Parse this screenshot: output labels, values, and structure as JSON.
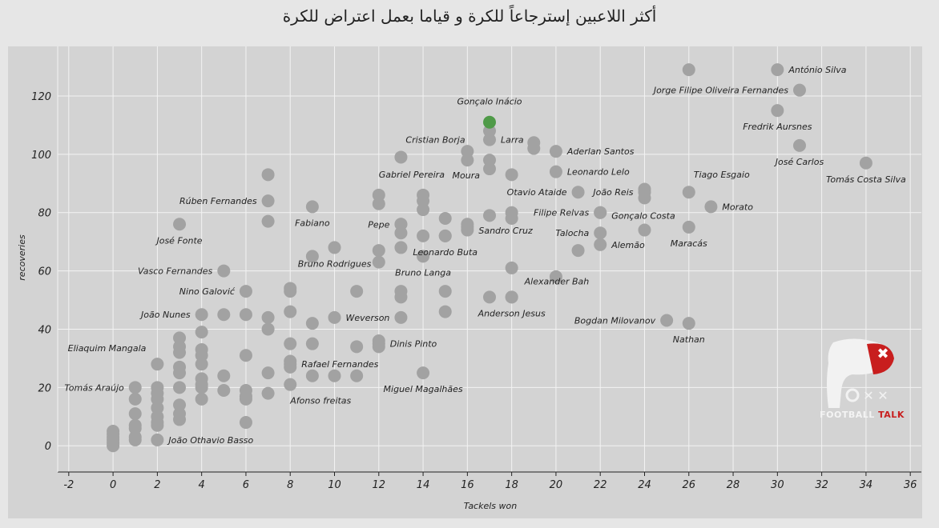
{
  "chart_data": {
    "type": "scatter",
    "title": "أكثر اللاعبين إسترجاعاً للكرة و قياما بعمل اعتراض للكرة",
    "xlabel": "Tackels won",
    "ylabel": "recoveries",
    "xlim": [
      -2.5,
      36.5
    ],
    "ylim": [
      -9,
      137
    ],
    "xticks": [
      -2,
      0,
      2,
      4,
      6,
      8,
      10,
      12,
      14,
      16,
      18,
      20,
      22,
      24,
      26,
      28,
      30,
      32,
      34,
      36
    ],
    "yticks": [
      0,
      20,
      40,
      60,
      80,
      100,
      120
    ],
    "grid": true,
    "marker_color": "#a2a2a2",
    "highlight_color": "#4f9a48",
    "labeled_points": [
      {
        "name": "Gonçalo Inácio",
        "x": 17,
        "y": 111,
        "highlight": true,
        "anchor": "middle",
        "side": "above"
      },
      {
        "name": "António Silva",
        "x": 30,
        "y": 129,
        "anchor": "start",
        "side": "right"
      },
      {
        "name": "Jorge Filipe Oliveira Fernandes",
        "x": 31,
        "y": 122,
        "anchor": "end",
        "side": "left"
      },
      {
        "name": "Fredrik Aursnes",
        "x": 30,
        "y": 115,
        "anchor": "middle",
        "side": "below"
      },
      {
        "name": "José Carlos",
        "x": 31,
        "y": 103,
        "anchor": "middle",
        "side": "below"
      },
      {
        "name": "Tomás Costa Silva",
        "x": 34,
        "y": 97,
        "anchor": "middle",
        "side": "below"
      },
      {
        "name": "Cristian Borja",
        "x": 13,
        "y": 99,
        "anchor": "start",
        "side": "above-right"
      },
      {
        "name": "Larra",
        "x": 17,
        "y": 105,
        "anchor": "start",
        "side": "right"
      },
      {
        "name": "Aderlan Santos",
        "x": 20,
        "y": 101,
        "anchor": "start",
        "side": "right"
      },
      {
        "name": "Leonardo Lelo",
        "x": 20,
        "y": 94,
        "anchor": "start",
        "side": "right"
      },
      {
        "name": "Moura",
        "x": 17,
        "y": 95,
        "anchor": "end",
        "side": "left-below"
      },
      {
        "name": "Tiago Esgaio",
        "x": 26,
        "y": 87,
        "anchor": "start",
        "side": "above-right"
      },
      {
        "name": "Gabriel Pereira",
        "x": 12,
        "y": 86,
        "anchor": "start",
        "side": "above"
      },
      {
        "name": "Otavio Ataide",
        "x": 21,
        "y": 87,
        "anchor": "end",
        "side": "left"
      },
      {
        "name": "João Reis",
        "x": 24,
        "y": 87,
        "anchor": "end",
        "side": "left"
      },
      {
        "name": "Rúben Fernandes",
        "x": 7,
        "y": 84,
        "anchor": "end",
        "side": "left"
      },
      {
        "name": "Morato",
        "x": 27,
        "y": 82,
        "anchor": "start",
        "side": "right"
      },
      {
        "name": "Fabiano",
        "x": 9,
        "y": 82,
        "anchor": "middle",
        "side": "below"
      },
      {
        "name": "Filipe Relvas",
        "x": 22,
        "y": 80,
        "anchor": "end",
        "side": "left"
      },
      {
        "name": "Gonçalo Costa",
        "x": 22,
        "y": 80,
        "anchor": "start",
        "side": "right-below"
      },
      {
        "name": "Pepe",
        "x": 13,
        "y": 76,
        "anchor": "end",
        "side": "left"
      },
      {
        "name": "José Fonte",
        "x": 3,
        "y": 76,
        "anchor": "middle",
        "side": "below"
      },
      {
        "name": "Maracás",
        "x": 26,
        "y": 75,
        "anchor": "middle",
        "side": "below"
      },
      {
        "name": "Sandro Cruz",
        "x": 16,
        "y": 75,
        "anchor": "start",
        "side": "right-below"
      },
      {
        "name": "Talocha",
        "x": 22,
        "y": 73,
        "anchor": "end",
        "side": "left"
      },
      {
        "name": "Alemão",
        "x": 22,
        "y": 69,
        "anchor": "start",
        "side": "right"
      },
      {
        "name": "Leonardo Buta",
        "x": 15,
        "y": 72,
        "anchor": "middle",
        "side": "below"
      },
      {
        "name": "Vasco Fernandes",
        "x": 5,
        "y": 60,
        "anchor": "end",
        "side": "left"
      },
      {
        "name": "Bruno Rodrigues",
        "x": 10,
        "y": 68,
        "anchor": "middle",
        "side": "below"
      },
      {
        "name": "Bruno Langa",
        "x": 14,
        "y": 65,
        "anchor": "middle",
        "side": "below"
      },
      {
        "name": "Nino Galović",
        "x": 6,
        "y": 53,
        "anchor": "end",
        "side": "left"
      },
      {
        "name": "Alexander Bah",
        "x": 18,
        "y": 51,
        "anchor": "start",
        "side": "right-above"
      },
      {
        "name": "João Nunes",
        "x": 4,
        "y": 45,
        "anchor": "end",
        "side": "left"
      },
      {
        "name": "Anderson Jesus",
        "x": 18,
        "y": 51,
        "anchor": "middle",
        "side": "below"
      },
      {
        "name": "Weverson",
        "x": 13,
        "y": 44,
        "anchor": "end",
        "side": "left"
      },
      {
        "name": "Bogdan Milovanov",
        "x": 25,
        "y": 43,
        "anchor": "end",
        "side": "left"
      },
      {
        "name": "Nathan",
        "x": 26,
        "y": 42,
        "anchor": "middle",
        "side": "below"
      },
      {
        "name": "Dinis Pinto",
        "x": 12,
        "y": 35,
        "anchor": "start",
        "side": "right"
      },
      {
        "name": "Eliaquim Mangala",
        "x": 2,
        "y": 28,
        "anchor": "end",
        "side": "left-above"
      },
      {
        "name": "Rafael Fernandes",
        "x": 8,
        "y": 28,
        "anchor": "start",
        "side": "right"
      },
      {
        "name": "Miguel Magalhães",
        "x": 14,
        "y": 25,
        "anchor": "middle",
        "side": "below"
      },
      {
        "name": "Tomás Araújo",
        "x": 1,
        "y": 20,
        "anchor": "end",
        "side": "left"
      },
      {
        "name": "Afonso freitas",
        "x": 8,
        "y": 21,
        "anchor": "start",
        "side": "below"
      },
      {
        "name": "João Othavio Basso",
        "x": 2,
        "y": 2,
        "anchor": "start",
        "side": "right"
      }
    ],
    "other_points": [
      [
        0,
        0
      ],
      [
        0,
        1
      ],
      [
        0,
        2
      ],
      [
        0,
        3
      ],
      [
        0,
        4
      ],
      [
        0,
        5
      ],
      [
        1,
        2
      ],
      [
        1,
        3
      ],
      [
        1,
        6
      ],
      [
        1,
        7
      ],
      [
        1,
        11
      ],
      [
        1,
        16
      ],
      [
        2,
        7
      ],
      [
        2,
        8
      ],
      [
        2,
        10
      ],
      [
        2,
        13
      ],
      [
        2,
        16
      ],
      [
        2,
        18
      ],
      [
        2,
        20
      ],
      [
        3,
        9
      ],
      [
        3,
        11
      ],
      [
        3,
        14
      ],
      [
        3,
        20
      ],
      [
        3,
        25
      ],
      [
        3,
        27
      ],
      [
        3,
        32
      ],
      [
        3,
        34
      ],
      [
        3,
        37
      ],
      [
        4,
        16
      ],
      [
        4,
        20
      ],
      [
        4,
        21
      ],
      [
        4,
        23
      ],
      [
        4,
        28
      ],
      [
        4,
        31
      ],
      [
        4,
        33
      ],
      [
        4,
        39
      ],
      [
        5,
        19
      ],
      [
        5,
        24
      ],
      [
        5,
        45
      ],
      [
        6,
        8
      ],
      [
        6,
        16
      ],
      [
        6,
        17
      ],
      [
        6,
        19
      ],
      [
        6,
        31
      ],
      [
        6,
        45
      ],
      [
        7,
        18
      ],
      [
        7,
        25
      ],
      [
        7,
        40
      ],
      [
        7,
        44
      ],
      [
        7,
        77
      ],
      [
        7,
        93
      ],
      [
        8,
        27
      ],
      [
        8,
        29
      ],
      [
        8,
        35
      ],
      [
        8,
        46
      ],
      [
        8,
        53
      ],
      [
        8,
        54
      ],
      [
        9,
        24
      ],
      [
        9,
        35
      ],
      [
        9,
        42
      ],
      [
        9,
        65
      ],
      [
        10,
        24
      ],
      [
        10,
        44
      ],
      [
        11,
        24
      ],
      [
        11,
        34
      ],
      [
        11,
        53
      ],
      [
        12,
        34
      ],
      [
        12,
        36
      ],
      [
        12,
        63
      ],
      [
        12,
        67
      ],
      [
        12,
        83
      ],
      [
        13,
        51
      ],
      [
        13,
        53
      ],
      [
        13,
        68
      ],
      [
        13,
        73
      ],
      [
        13,
        76
      ],
      [
        14,
        72
      ],
      [
        14,
        81
      ],
      [
        14,
        84
      ],
      [
        14,
        86
      ],
      [
        15,
        46
      ],
      [
        15,
        53
      ],
      [
        15,
        72
      ],
      [
        15,
        78
      ],
      [
        16,
        74
      ],
      [
        16,
        76
      ],
      [
        16,
        98
      ],
      [
        16,
        101
      ],
      [
        17,
        51
      ],
      [
        17,
        79
      ],
      [
        17,
        98
      ],
      [
        17,
        108
      ],
      [
        18,
        61
      ],
      [
        18,
        78
      ],
      [
        18,
        80
      ],
      [
        18,
        93
      ],
      [
        19,
        102
      ],
      [
        19,
        104
      ],
      [
        20,
        58
      ],
      [
        21,
        67
      ],
      [
        24,
        74
      ],
      [
        24,
        85
      ],
      [
        24,
        88
      ],
      [
        26,
        129
      ]
    ]
  },
  "branding": {
    "logo_icon": "foxx-fox-icon",
    "logo_text_main": "FOOTBALL",
    "logo_text_accent": "TALK"
  }
}
